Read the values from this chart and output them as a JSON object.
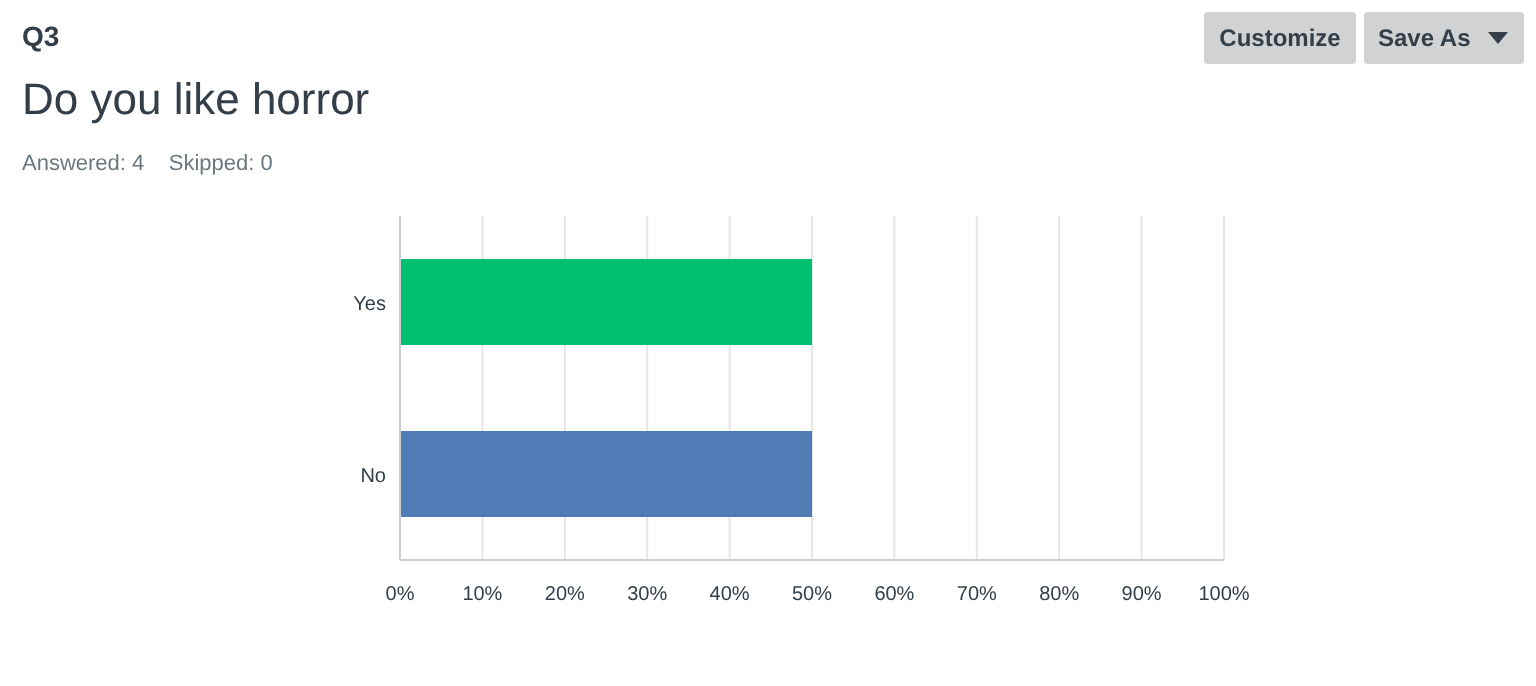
{
  "chart_data": {
    "type": "bar",
    "orientation": "horizontal",
    "title": "Do you like horror",
    "subtitle": "Answered: 4    Skipped: 0",
    "annotations": [
      "Q3",
      "Customize",
      "Save As"
    ],
    "categories": [
      "Yes",
      "No"
    ],
    "values": [
      50,
      50
    ],
    "colors": [
      "#00bf6f",
      "#507cb6"
    ],
    "xlim": [
      0,
      100
    ],
    "xticks": [
      {
        "value": 0,
        "label": "0%"
      },
      {
        "value": 10,
        "label": "10%"
      },
      {
        "value": 20,
        "label": "20%"
      },
      {
        "value": 30,
        "label": "30%"
      },
      {
        "value": 40,
        "label": "40%"
      },
      {
        "value": 50,
        "label": "50%"
      },
      {
        "value": 60,
        "label": "60%"
      },
      {
        "value": 70,
        "label": "70%"
      },
      {
        "value": 80,
        "label": "80%"
      },
      {
        "value": 90,
        "label": "90%"
      },
      {
        "value": 100,
        "label": "100%"
      }
    ],
    "grid": "x"
  }
}
